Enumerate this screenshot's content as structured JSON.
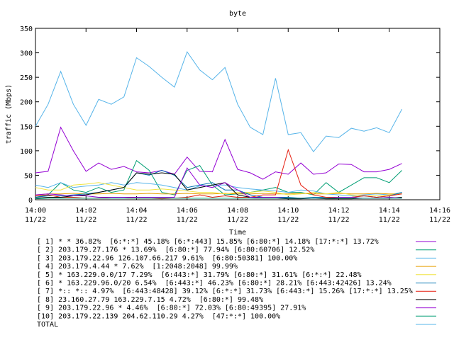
{
  "chart_data": {
    "type": "line",
    "title": "byte",
    "x_label": "Time",
    "y_label": "traffic (Mbps)",
    "x": [
      0,
      0.5,
      1,
      1.5,
      2,
      2.5,
      3,
      3.5,
      4,
      4.5,
      5,
      5.5,
      6,
      6.5,
      7,
      7.5,
      8,
      8.5,
      9,
      9.5,
      10,
      10.5,
      11,
      11.5,
      12,
      12.5,
      13,
      13.5,
      14,
      14.5
    ],
    "xlim": [
      0,
      16
    ],
    "xticks": [
      {
        "value": 0,
        "label": "14:00",
        "date": "11/22"
      },
      {
        "value": 2,
        "label": "14:02",
        "date": "11/22"
      },
      {
        "value": 4,
        "label": "14:04",
        "date": "11/22"
      },
      {
        "value": 6,
        "label": "14:06",
        "date": "11/22"
      },
      {
        "value": 8,
        "label": "14:08",
        "date": "11/22"
      },
      {
        "value": 10,
        "label": "14:10",
        "date": "11/22"
      },
      {
        "value": 12,
        "label": "14:12",
        "date": "11/22"
      },
      {
        "value": 14,
        "label": "14:14",
        "date": "11/22"
      },
      {
        "value": 16,
        "label": "14:16",
        "date": "11/22"
      }
    ],
    "ylim": [
      0,
      350
    ],
    "yticks": [
      0,
      50,
      100,
      150,
      200,
      250,
      300,
      350
    ],
    "series": [
      {
        "name": "[ 1] * * 36.82%  [6:*:*] 45.18% [6:*:443] 15.85% [6:80:*] 14.18% [17:*:*] 13.72%",
        "color": "#9400d3",
        "values": [
          55,
          58,
          148,
          100,
          58,
          75,
          62,
          68,
          57,
          55,
          60,
          52,
          87,
          58,
          57,
          123,
          62,
          55,
          42,
          57,
          52,
          75,
          52,
          55,
          73,
          72,
          57,
          57,
          62,
          74
        ]
      },
      {
        "name": "[ 2] 203.179.27.176 * 13.69%  [6:80:*] 77.94% [6:80:60706] 12.52%",
        "color": "#009e73",
        "values": [
          5,
          10,
          35,
          20,
          15,
          25,
          15,
          20,
          80,
          60,
          15,
          10,
          60,
          70,
          30,
          10,
          12,
          15,
          20,
          25,
          15,
          15,
          10,
          35,
          15,
          30,
          45,
          45,
          35,
          60
        ]
      },
      {
        "name": "[ 3] 203.179.22.96 126.107.66.217 9.61%  [6:80:50381] 100.00%",
        "color": "#56b4e9",
        "values": [
          30,
          25,
          35,
          25,
          28,
          30,
          35,
          30,
          35,
          33,
          30,
          25,
          20,
          28,
          30,
          30,
          25,
          22,
          20,
          18,
          15,
          20,
          18,
          12,
          10,
          8,
          10,
          12,
          10,
          15
        ]
      },
      {
        "name": "[ 4] 203.179.4.44 * 7.62%  [1:2048:2048] 99.99%",
        "color": "#e69f00",
        "values": [
          10,
          12,
          12,
          13,
          12,
          12,
          13,
          12,
          12,
          13,
          12,
          12,
          13,
          12,
          12,
          13,
          12,
          12,
          13,
          12,
          12,
          13,
          12,
          12,
          13,
          12,
          12,
          13,
          12,
          12
        ]
      },
      {
        "name": "[ 5] * 163.229.0.0/17 7.29%  [6:443:*] 31.79% [6:80:*] 31.61% [6:*:*] 22.48%",
        "color": "#f0e442",
        "values": [
          25,
          20,
          20,
          30,
          32,
          35,
          30,
          25,
          20,
          20,
          22,
          20,
          18,
          15,
          15,
          12,
          15,
          15,
          18,
          15,
          10,
          12,
          15,
          12,
          15,
          10,
          8,
          8,
          10,
          12
        ]
      },
      {
        "name": "[ 6] * 163.229.96.0/20 6.54%  [6:443:*] 46.23% [6:80:*] 28.21% [6:443:42426] 13.24%",
        "color": "#0072b2",
        "values": [
          5,
          8,
          8,
          10,
          12,
          15,
          20,
          25,
          55,
          50,
          60,
          50,
          25,
          30,
          35,
          20,
          20,
          10,
          5,
          5,
          5,
          3,
          5,
          5,
          5,
          5,
          8,
          5,
          8,
          15
        ]
      },
      {
        "name": "[ 7] *:: *:: 4.97%  [6:443:48428] 39.12% [6:*:*] 31.73% [6:443:*] 15.26% [17:*:*] 13.25%",
        "color": "#e51e10",
        "values": [
          8,
          10,
          5,
          5,
          3,
          3,
          5,
          5,
          3,
          3,
          2,
          3,
          5,
          10,
          5,
          8,
          5,
          5,
          10,
          10,
          102,
          30,
          10,
          5,
          5,
          5,
          8,
          5,
          8,
          12
        ]
      },
      {
        "name": "[ 8] 23.160.27.79 163.229.7.15 4.72%  [6:80:*] 99.48%",
        "color": "#000000",
        "values": [
          3,
          5,
          5,
          8,
          10,
          15,
          20,
          25,
          55,
          52,
          55,
          52,
          20,
          25,
          30,
          35,
          10,
          5,
          3,
          3,
          2,
          2,
          3,
          2,
          2,
          2,
          3,
          3,
          3,
          5
        ]
      },
      {
        "name": "[ 9] 203.179.22.96 * 4.46%  [6:80:*] 72.03% [6:80:49395] 27.91%",
        "color": "#9400d3",
        "values": [
          10,
          12,
          10,
          8,
          8,
          5,
          5,
          5,
          5,
          5,
          5,
          5,
          65,
          30,
          25,
          35,
          20,
          5,
          5,
          5,
          3,
          3,
          3,
          3,
          5,
          5,
          3,
          3,
          5,
          3
        ]
      },
      {
        "name": "[10] 203.179.22.139 204.62.110.29 4.27%  [47:*:*] 100.00%",
        "color": "#009e73",
        "values": [
          2,
          3,
          3,
          3,
          3,
          3,
          3,
          3,
          3,
          3,
          3,
          3,
          3,
          3,
          3,
          3,
          3,
          3,
          3,
          3,
          3,
          3,
          3,
          3,
          3,
          3,
          3,
          3,
          3,
          3
        ]
      },
      {
        "name": "TOTAL",
        "color": "#56b4e9",
        "values": [
          150,
          195,
          262,
          195,
          152,
          205,
          195,
          210,
          290,
          272,
          250,
          230,
          302,
          265,
          245,
          270,
          195,
          148,
          133,
          248,
          133,
          137,
          98,
          130,
          127,
          146,
          140,
          147,
          137,
          185
        ]
      }
    ]
  }
}
